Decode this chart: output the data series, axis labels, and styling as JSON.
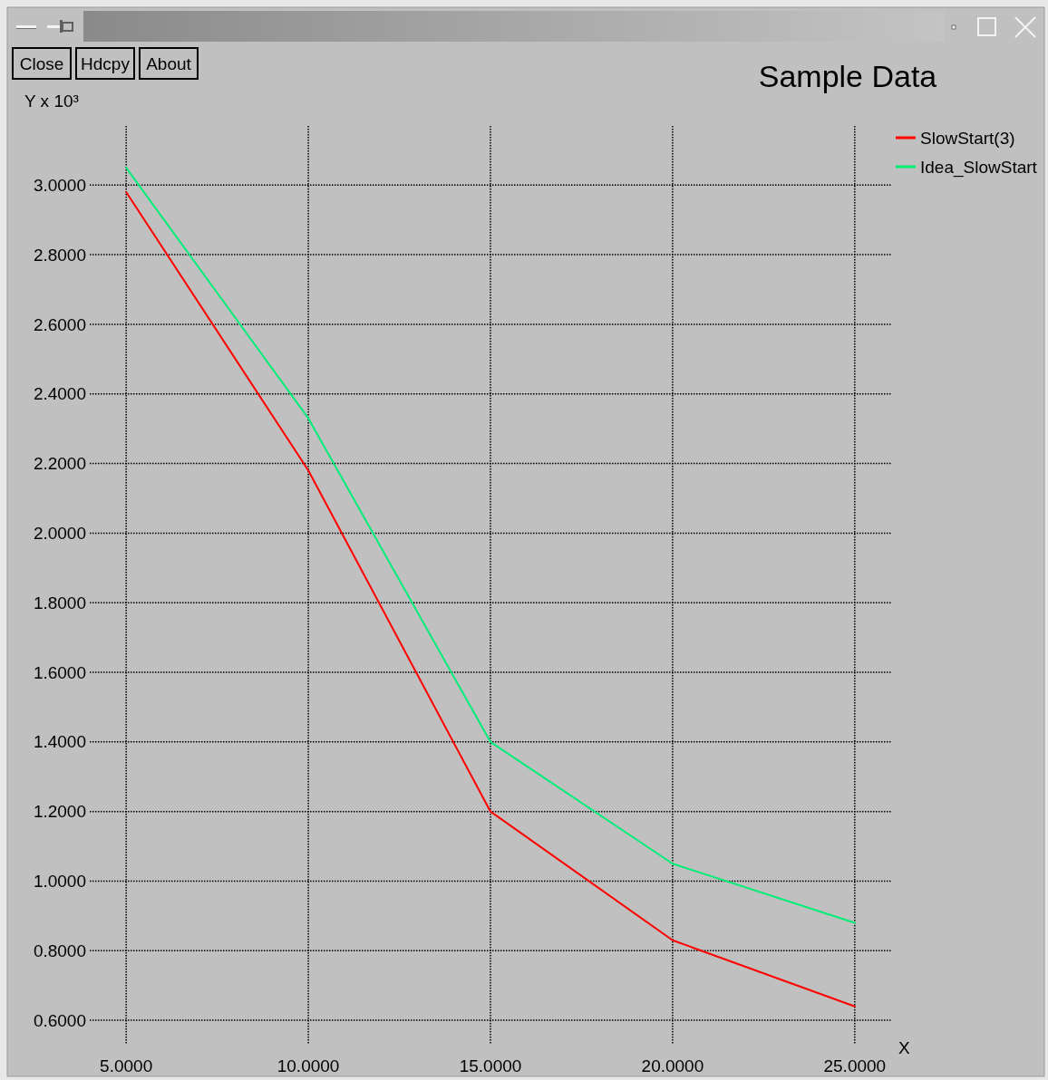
{
  "chart_data": {
    "type": "line",
    "title": "Sample Data",
    "xlabel": "X",
    "ylabel": "Y x 10³",
    "annotations": [
      "Close",
      "Hdcpy",
      "About"
    ],
    "x": [
      5,
      10,
      15,
      20,
      25
    ],
    "series": [
      {
        "name": "SlowStart(3)",
        "color": "#ff0000",
        "values": [
          2.98,
          2.18,
          1.2,
          0.83,
          0.64
        ]
      },
      {
        "name": "Idea_SlowStart",
        "color": "#00ee77",
        "values": [
          3.05,
          2.33,
          1.4,
          1.05,
          0.88
        ]
      }
    ],
    "xlim": [
      4,
      26
    ],
    "ylim": [
      0.53,
      3.17
    ],
    "xticks": [
      {
        "value": 5,
        "label": "5.0000"
      },
      {
        "value": 10,
        "label": "10.0000"
      },
      {
        "value": 15,
        "label": "15.0000"
      },
      {
        "value": 20,
        "label": "20.0000"
      },
      {
        "value": 25,
        "label": "25.0000"
      }
    ],
    "yticks": [
      {
        "value": 0.6,
        "label": "0.6000"
      },
      {
        "value": 0.8,
        "label": "0.8000"
      },
      {
        "value": 1,
        "label": "1.0000"
      },
      {
        "value": 1.2,
        "label": "1.2000"
      },
      {
        "value": 1.4,
        "label": "1.4000"
      },
      {
        "value": 1.6,
        "label": "1.6000"
      },
      {
        "value": 1.8,
        "label": "1.8000"
      },
      {
        "value": 2,
        "label": "2.0000"
      },
      {
        "value": 2.2,
        "label": "2.2000"
      },
      {
        "value": 2.4,
        "label": "2.4000"
      },
      {
        "value": 2.6,
        "label": "2.6000"
      },
      {
        "value": 2.8,
        "label": "2.8000"
      },
      {
        "value": 3,
        "label": "3.0000"
      }
    ],
    "grid": true,
    "legend": "top right",
    "line_style": "solid"
  }
}
